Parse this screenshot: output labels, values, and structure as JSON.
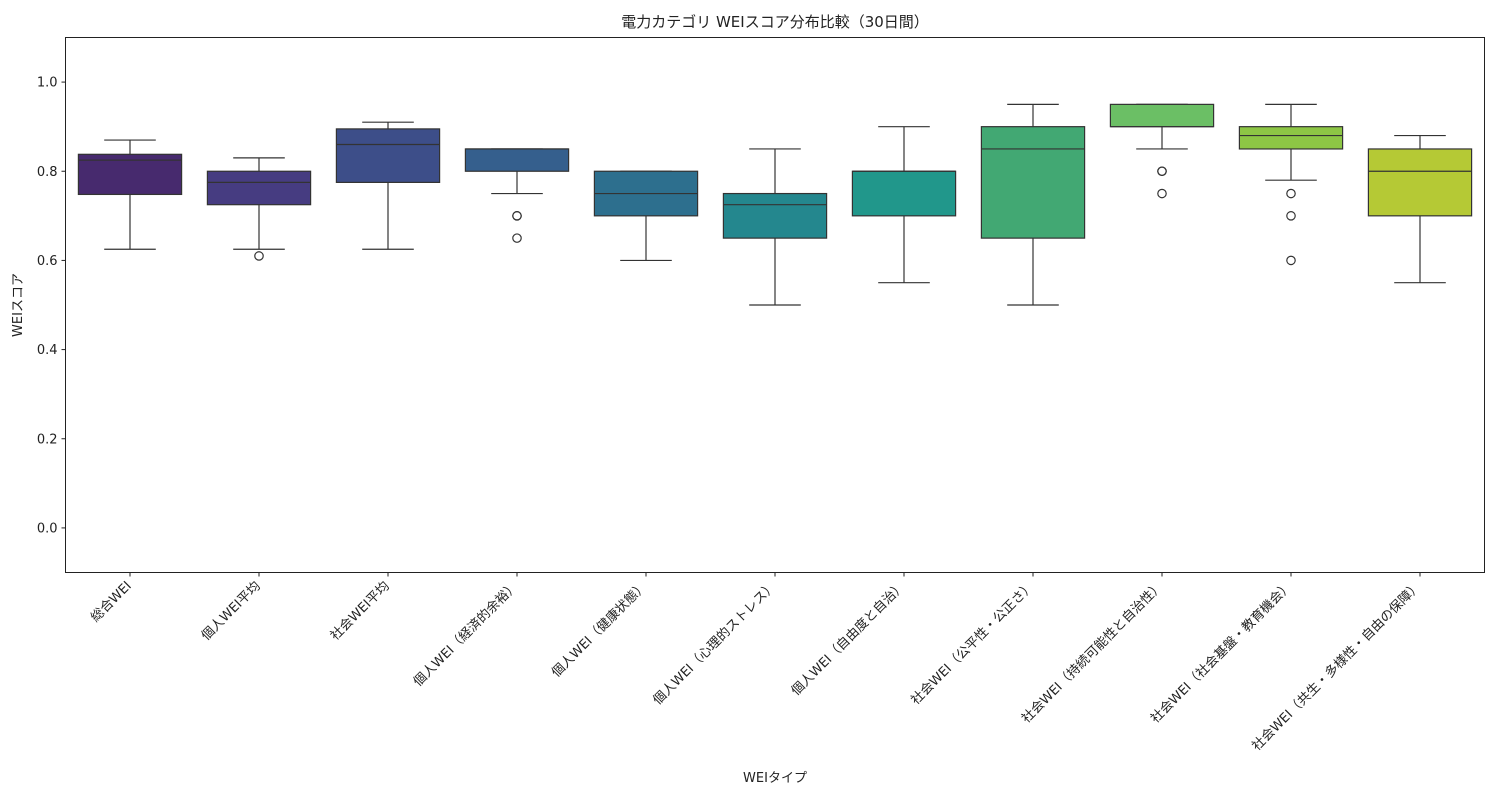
{
  "chart_data": {
    "type": "box",
    "title": "電力カテゴリ WEIスコア分布比較（30日間）",
    "xlabel": "WEIタイプ",
    "ylabel": "WEIスコア",
    "ylim": [
      -0.1,
      1.1
    ],
    "yticks": [
      0.0,
      0.2,
      0.4,
      0.6,
      0.8,
      1.0
    ],
    "ytick_labels": [
      "0.0",
      "0.2",
      "0.4",
      "0.6",
      "0.8",
      "1.0"
    ],
    "grid": false,
    "categories": [
      "総合WEI",
      "個人WEI平均",
      "社会WEI平均",
      "個人WEI（経済的余裕）",
      "個人WEI（健康状態）",
      "個人WEI（心理的ストレス）",
      "個人WEI（自由度と自治）",
      "社会WEI（公平性・公正さ）",
      "社会WEI（持続可能性と自治性）",
      "社会WEI（社会基盤・教育機会）",
      "社会WEI（共生・多様性・自由の保障）"
    ],
    "boxes": [
      {
        "whisker_low": 0.625,
        "q1": 0.748,
        "median": 0.825,
        "q3": 0.838,
        "whisker_high": 0.87,
        "outliers": [],
        "color": "#472a6e"
      },
      {
        "whisker_low": 0.625,
        "q1": 0.725,
        "median": 0.775,
        "q3": 0.8,
        "whisker_high": 0.83,
        "outliers": [
          0.61
        ],
        "color": "#463c81"
      },
      {
        "whisker_low": 0.625,
        "q1": 0.775,
        "median": 0.86,
        "q3": 0.895,
        "whisker_high": 0.91,
        "outliers": [],
        "color": "#3d4e89"
      },
      {
        "whisker_low": 0.75,
        "q1": 0.8,
        "median": 0.85,
        "q3": 0.85,
        "whisker_high": 0.85,
        "outliers": [
          0.7,
          0.7,
          0.65
        ],
        "color": "#355f8d"
      },
      {
        "whisker_low": 0.6,
        "q1": 0.7,
        "median": 0.75,
        "q3": 0.8,
        "whisker_high": 0.8,
        "outliers": [],
        "color": "#2d6f8e"
      },
      {
        "whisker_low": 0.5,
        "q1": 0.65,
        "median": 0.725,
        "q3": 0.75,
        "whisker_high": 0.85,
        "outliers": [],
        "color": "#24878e"
      },
      {
        "whisker_low": 0.55,
        "q1": 0.7,
        "median": 0.8,
        "q3": 0.8,
        "whisker_high": 0.9,
        "outliers": [],
        "color": "#21978b"
      },
      {
        "whisker_low": 0.5,
        "q1": 0.65,
        "median": 0.85,
        "q3": 0.9,
        "whisker_high": 0.95,
        "outliers": [],
        "color": "#42a873"
      },
      {
        "whisker_low": 0.85,
        "q1": 0.9,
        "median": 0.9,
        "q3": 0.95,
        "whisker_high": 0.95,
        "outliers": [
          0.8,
          0.8,
          0.75
        ],
        "color": "#6bbf65"
      },
      {
        "whisker_low": 0.78,
        "q1": 0.85,
        "median": 0.88,
        "q3": 0.9,
        "whisker_high": 0.95,
        "outliers": [
          0.75,
          0.7,
          0.6
        ],
        "color": "#8dc645"
      },
      {
        "whisker_low": 0.55,
        "q1": 0.7,
        "median": 0.8,
        "q3": 0.85,
        "whisker_high": 0.88,
        "outliers": [],
        "color": "#b5c935"
      }
    ]
  }
}
